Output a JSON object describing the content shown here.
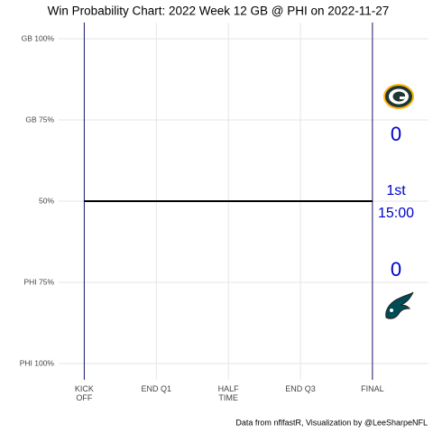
{
  "chart_data": {
    "type": "line",
    "title": "Win Probability Chart: 2022 Week 12 GB @ PHI on 2022-11-27",
    "caption": "Data from nflfastR, Visualization by @LeeSharpeNFL",
    "x": [
      0,
      3600
    ],
    "series": [
      {
        "name": "GB",
        "color": "#000000",
        "values": [
          50,
          50
        ]
      }
    ],
    "xlim": [
      -320,
      4300
    ],
    "ylim": [
      -5,
      105
    ],
    "xticks": [
      {
        "value": 0,
        "label": "KICK OFF"
      },
      {
        "value": 900,
        "label": "END Q1"
      },
      {
        "value": 1800,
        "label": "HALF TIME"
      },
      {
        "value": 2700,
        "label": "END Q3"
      },
      {
        "value": 3600,
        "label": "FINAL"
      }
    ],
    "yticks": [
      {
        "value": 100,
        "label": "GB 100%"
      },
      {
        "value": 75,
        "label": "GB 75%"
      },
      {
        "value": 50,
        "label": "50%"
      },
      {
        "value": 25,
        "label": "PHI 75%"
      },
      {
        "value": 0,
        "label": "PHI 100%"
      }
    ],
    "grid": true,
    "vlines": [
      0,
      3600
    ],
    "vline_color": "#1a1a6e",
    "gb_score": 0,
    "phi_score": 0,
    "quarter": "1st",
    "clock": "15:00",
    "score_color": "#0000cc"
  }
}
